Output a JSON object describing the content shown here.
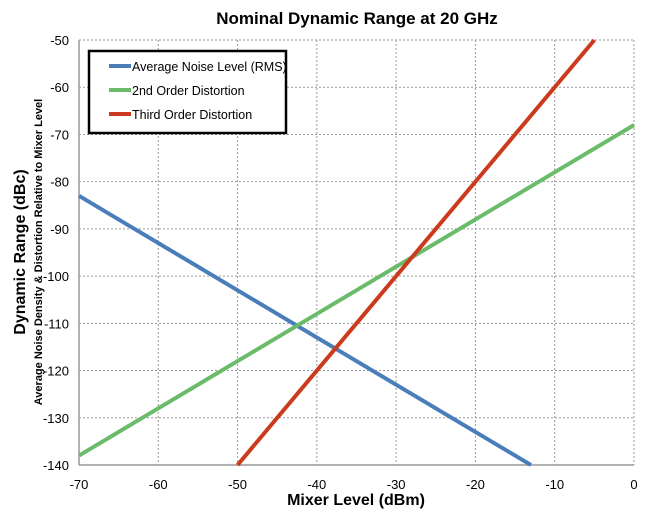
{
  "chart_data": {
    "type": "line",
    "title": "Nominal Dynamic Range at 20 GHz",
    "xlabel": "Mixer Level  (dBm)",
    "ylabel": "Dynamic Range (dBc)",
    "ylabel_sub": "Average Noise Density & Distortion Relative to Mixer Level",
    "xlim": [
      -70,
      0
    ],
    "ylim": [
      -140,
      -50
    ],
    "xticks": [
      -70,
      -60,
      -50,
      -40,
      -30,
      -20,
      -10,
      0
    ],
    "yticks": [
      -50,
      -60,
      -70,
      -80,
      -90,
      -100,
      -110,
      -120,
      -130,
      -140
    ],
    "grid": true,
    "legend_position": "top-left",
    "series": [
      {
        "name": "Average Noise Level (RMS)",
        "color": "#4a7ebb",
        "x": [
          -70,
          -13
        ],
        "y": [
          -83,
          -140
        ]
      },
      {
        "name": "2nd Order Distortion",
        "color": "#6abb6a",
        "x": [
          -70,
          0
        ],
        "y": [
          -138,
          -68
        ]
      },
      {
        "name": "Third Order Distortion",
        "color": "#cc3a1e",
        "x": [
          -50,
          -5
        ],
        "y": [
          -140,
          -50
        ]
      }
    ]
  }
}
